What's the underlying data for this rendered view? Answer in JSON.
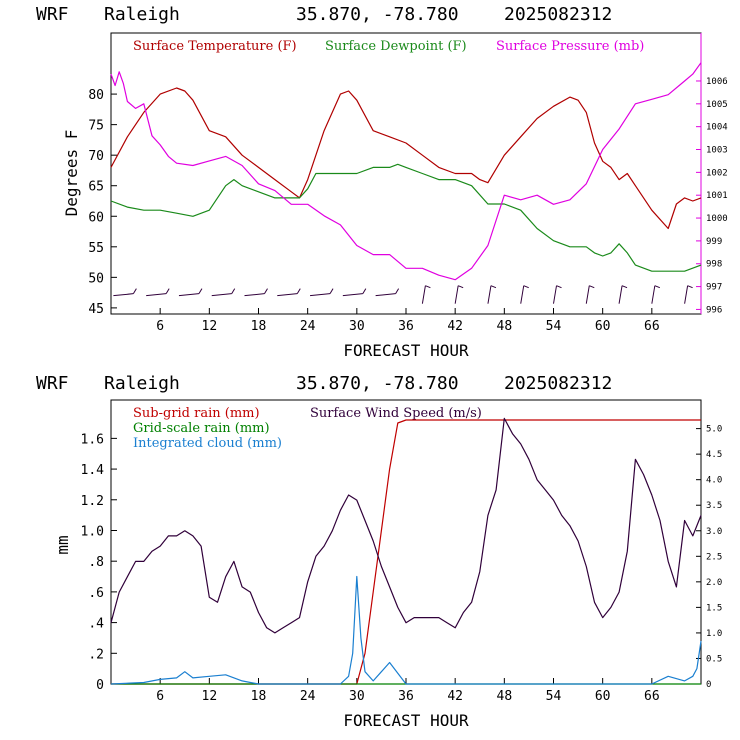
{
  "header": {
    "model": "WRF",
    "location": "Raleigh",
    "coords": "35.870, -78.780",
    "init": "2025082312"
  },
  "colors": {
    "temperature": "#b00000",
    "dewpoint": "#1a8a1a",
    "pressure": "#e000e0",
    "wind": "#30003a",
    "subgrid": "#c00000",
    "gridscale": "#008000",
    "cloud": "#1a7fd0"
  },
  "chart_data": [
    {
      "type": "line",
      "xlabel": "FORECAST HOUR",
      "ylabel": "Degrees F",
      "xlim": [
        0,
        72
      ],
      "ylim": [
        44,
        90
      ],
      "y2lim": [
        995.8,
        1008.1
      ],
      "x_ticks": [
        "6",
        "12",
        "18",
        "24",
        "30",
        "36",
        "42",
        "48",
        "54",
        "60",
        "66"
      ],
      "y_ticks": [
        "45",
        "50",
        "55",
        "60",
        "65",
        "70",
        "75",
        "80"
      ],
      "y2_ticks": [
        "996",
        "997",
        "998",
        "999",
        "1000",
        "1001",
        "1002",
        "1003",
        "1004",
        "1005",
        "1006"
      ],
      "grid": false,
      "legend": [
        {
          "label": "Surface Temperature (F)",
          "color": "#b00000"
        },
        {
          "label": "Surface Dewpoint (F)",
          "color": "#1a8a1a"
        },
        {
          "label": "Surface Pressure (mb)",
          "color": "#e000e0"
        }
      ],
      "series": [
        {
          "name": "Surface Temperature (F)",
          "axis": "left",
          "color": "#b00000",
          "x": [
            0,
            2,
            4,
            6,
            8,
            9,
            10,
            12,
            14,
            16,
            18,
            20,
            22,
            23,
            24,
            26,
            28,
            29,
            30,
            32,
            34,
            36,
            38,
            40,
            42,
            44,
            45,
            46,
            48,
            50,
            52,
            54,
            56,
            57,
            58,
            59,
            60,
            61,
            62,
            63,
            64,
            66,
            68,
            69,
            70,
            71,
            72
          ],
          "y": [
            68,
            73,
            77,
            80,
            81,
            80.5,
            79,
            74,
            73,
            70,
            68,
            66,
            64,
            63,
            66,
            74,
            80,
            80.5,
            79,
            74,
            73,
            72,
            70,
            68,
            67,
            67,
            66,
            65.5,
            70,
            73,
            76,
            78,
            79.5,
            79,
            77,
            72,
            69,
            68,
            66,
            67,
            65,
            61,
            58,
            62,
            63,
            62.5,
            63
          ]
        },
        {
          "name": "Surface Dewpoint (F)",
          "axis": "left",
          "color": "#1a8a1a",
          "x": [
            0,
            2,
            4,
            6,
            8,
            10,
            12,
            13,
            14,
            15,
            16,
            18,
            20,
            22,
            23,
            24,
            25,
            26,
            28,
            30,
            32,
            34,
            35,
            36,
            38,
            40,
            42,
            44,
            46,
            48,
            50,
            52,
            54,
            56,
            58,
            59,
            60,
            61,
            62,
            63,
            64,
            66,
            68,
            70,
            72
          ],
          "y": [
            62.5,
            61.5,
            61,
            61,
            60.5,
            60,
            61,
            63,
            65,
            66,
            65,
            64,
            63,
            63,
            63,
            64.5,
            67,
            67,
            67,
            67,
            68,
            68,
            68.5,
            68,
            67,
            66,
            66,
            65,
            62,
            62,
            61,
            58,
            56,
            55,
            55,
            54,
            53.5,
            54,
            55.5,
            54,
            52,
            51,
            51,
            51,
            52
          ]
        },
        {
          "name": "Surface Pressure (mb)",
          "axis": "right",
          "color": "#e000e0",
          "x": [
            0,
            0.5,
            1,
            1.5,
            2,
            3,
            4,
            5,
            6,
            7,
            8,
            10,
            12,
            14,
            16,
            18,
            20,
            22,
            24,
            26,
            28,
            30,
            32,
            34,
            36,
            38,
            40,
            42,
            44,
            46,
            48,
            50,
            52,
            54,
            56,
            58,
            60,
            62,
            64,
            66,
            68,
            70,
            71,
            72
          ],
          "y": [
            1006.3,
            1005.8,
            1006.4,
            1005.9,
            1005.1,
            1004.8,
            1005,
            1003.6,
            1003.2,
            1002.7,
            1002.4,
            1002.3,
            1002.5,
            1002.7,
            1002.3,
            1001.5,
            1001.2,
            1000.6,
            1000.6,
            1000.1,
            999.7,
            998.8,
            998.4,
            998.4,
            997.8,
            997.8,
            997.5,
            997.3,
            997.8,
            998.8,
            1001,
            1000.8,
            1001,
            1000.6,
            1000.8,
            1001.5,
            1003,
            1003.9,
            1005,
            1005.2,
            1005.4,
            1006,
            1006.3,
            1006.8
          ]
        }
      ],
      "wind_barbs": {
        "x": [
          2,
          6,
          10,
          14,
          18,
          22,
          26,
          30,
          34,
          38,
          42,
          46,
          50,
          54,
          58,
          62,
          66,
          70
        ]
      }
    },
    {
      "type": "line",
      "xlabel": "FORECAST HOUR",
      "ylabel": "mm",
      "xlim": [
        0,
        72
      ],
      "ylim": [
        0,
        1.85
      ],
      "y2lim": [
        0,
        5.56
      ],
      "x_ticks": [
        "6",
        "12",
        "18",
        "24",
        "30",
        "36",
        "42",
        "48",
        "54",
        "60",
        "66"
      ],
      "y_ticks": [
        "0",
        ".2",
        ".4",
        ".6",
        ".8",
        "1.0",
        "1.2",
        "1.4",
        "1.6"
      ],
      "y2_ticks": [
        "0",
        "0.5",
        "1.0",
        "1.5",
        "2.0",
        "2.5",
        "3.0",
        "3.5",
        "4.0",
        "4.5",
        "5.0"
      ],
      "grid": false,
      "legend": [
        {
          "label": "Sub-grid rain (mm)",
          "color": "#c00000"
        },
        {
          "label": "Grid-scale rain (mm)",
          "color": "#008000"
        },
        {
          "label": "Integrated cloud (mm)",
          "color": "#1a7fd0"
        },
        {
          "label": "Surface Wind Speed (m/s)",
          "color": "#30003a"
        }
      ],
      "series": [
        {
          "name": "Sub-grid rain (mm)",
          "axis": "left",
          "color": "#c00000",
          "x": [
            0,
            30,
            31,
            32,
            33,
            34,
            35,
            36,
            72
          ],
          "y": [
            0,
            0,
            0.2,
            0.6,
            1.0,
            1.4,
            1.7,
            1.72,
            1.72
          ]
        },
        {
          "name": "Grid-scale rain (mm)",
          "axis": "left",
          "color": "#008000",
          "x": [
            0,
            72
          ],
          "y": [
            0,
            0
          ]
        },
        {
          "name": "Integrated cloud (mm)",
          "axis": "left",
          "color": "#1a7fd0",
          "x": [
            0,
            4,
            6,
            8,
            9,
            10,
            12,
            14,
            16,
            18,
            26,
            28,
            29,
            29.5,
            30,
            30.5,
            31,
            32,
            33,
            34,
            35,
            36,
            38,
            66,
            68,
            70,
            71,
            71.5,
            72
          ],
          "y": [
            0,
            0.01,
            0.03,
            0.04,
            0.08,
            0.04,
            0.05,
            0.06,
            0.02,
            0,
            0,
            0,
            0.05,
            0.2,
            0.7,
            0.3,
            0.08,
            0.02,
            0.08,
            0.14,
            0.07,
            0,
            0,
            0,
            0.05,
            0.02,
            0.05,
            0.1,
            0.28
          ]
        },
        {
          "name": "Surface Wind Speed (m/s)",
          "axis": "right",
          "color": "#30003a",
          "x": [
            0,
            1,
            2,
            3,
            4,
            5,
            6,
            7,
            8,
            9,
            10,
            11,
            12,
            13,
            14,
            15,
            16,
            17,
            18,
            19,
            20,
            21,
            22,
            23,
            24,
            25,
            26,
            27,
            28,
            29,
            30,
            31,
            32,
            33,
            34,
            35,
            36,
            37,
            38,
            39,
            40,
            41,
            42,
            43,
            44,
            45,
            46,
            47,
            48,
            49,
            50,
            51,
            52,
            53,
            54,
            55,
            56,
            57,
            58,
            59,
            60,
            61,
            62,
            63,
            64,
            65,
            66,
            67,
            68,
            69,
            70,
            71,
            72
          ],
          "y": [
            1.2,
            1.8,
            2.1,
            2.4,
            2.4,
            2.6,
            2.7,
            2.9,
            2.9,
            3.0,
            2.9,
            2.7,
            1.7,
            1.6,
            2.1,
            2.4,
            1.9,
            1.8,
            1.4,
            1.1,
            1.0,
            1.1,
            1.2,
            1.3,
            2.0,
            2.5,
            2.7,
            3.0,
            3.4,
            3.7,
            3.6,
            3.2,
            2.8,
            2.3,
            1.9,
            1.5,
            1.2,
            1.3,
            1.3,
            1.3,
            1.3,
            1.2,
            1.1,
            1.4,
            1.6,
            2.2,
            3.3,
            3.8,
            5.2,
            4.9,
            4.7,
            4.4,
            4.0,
            3.8,
            3.6,
            3.3,
            3.1,
            2.8,
            2.3,
            1.6,
            1.3,
            1.5,
            1.8,
            2.6,
            4.4,
            4.1,
            3.7,
            3.2,
            2.4,
            1.9,
            3.2,
            2.9,
            3.3
          ]
        }
      ]
    }
  ]
}
